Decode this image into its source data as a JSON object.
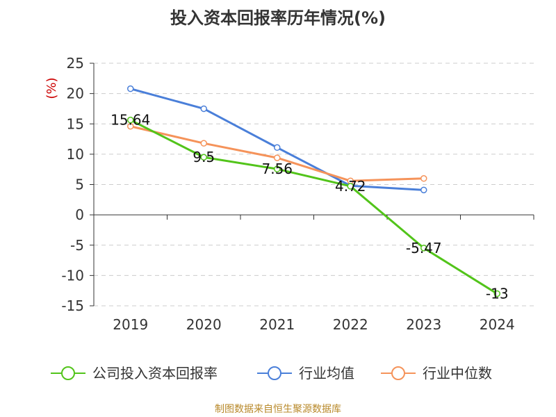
{
  "chart_data": {
    "type": "line",
    "title": "投入资本回报率历年情况(%)",
    "ylabel": "(%)",
    "xlabel": "",
    "categories": [
      "2019",
      "2020",
      "2021",
      "2022",
      "2023",
      "2024"
    ],
    "ylim": [
      -15,
      25
    ],
    "yticks": [
      25,
      20,
      15,
      10,
      5,
      0,
      -5,
      -10,
      -15
    ],
    "grid": true,
    "legend_position": "bottom",
    "series": [
      {
        "name": "公司投入资本回报率",
        "color": "#52c41a",
        "values": [
          15.64,
          9.5,
          7.56,
          4.72,
          -5.47,
          -13
        ],
        "labels": [
          "15.64",
          "9.5",
          "7.56",
          "4.72",
          "-5.47",
          "-13"
        ]
      },
      {
        "name": "行业均值",
        "color": "#4a7fd9",
        "values": [
          20.8,
          17.5,
          11.1,
          4.8,
          4.1,
          null
        ]
      },
      {
        "name": "行业中位数",
        "color": "#f5935a",
        "values": [
          14.6,
          11.8,
          9.4,
          5.6,
          6.0,
          null
        ]
      }
    ]
  },
  "source": "制图数据来自恒生聚源数据库"
}
